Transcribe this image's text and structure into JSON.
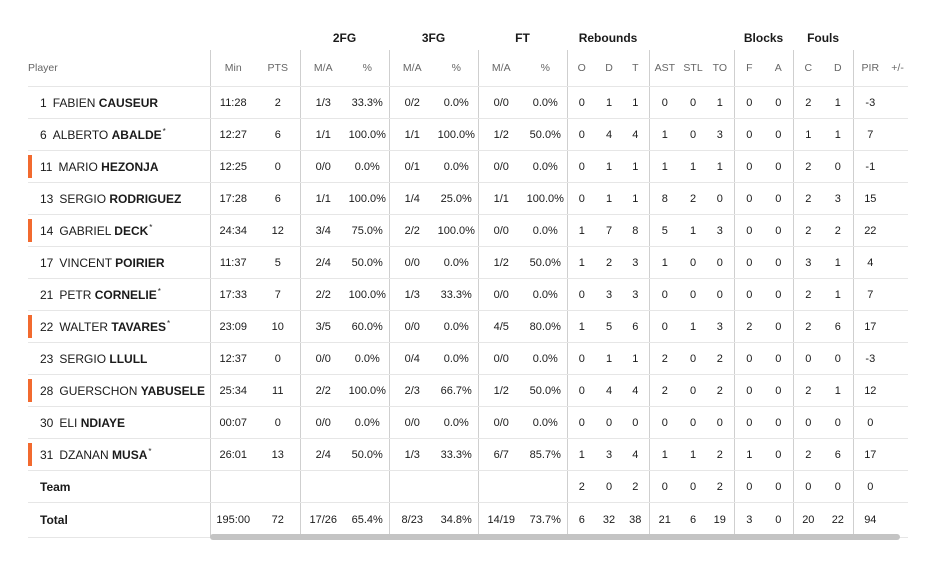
{
  "groups": {
    "fg2": "2FG",
    "fg3": "3FG",
    "ft": "FT",
    "rebounds": "Rebounds",
    "blocks": "Blocks",
    "fouls": "Fouls"
  },
  "headers": {
    "player": "Player",
    "min": "Min",
    "pts": "PTS",
    "fg2_ma": "M/A",
    "fg2_pct": "%",
    "fg3_ma": "M/A",
    "fg3_pct": "%",
    "ft_ma": "M/A",
    "ft_pct": "%",
    "reb_o": "O",
    "reb_d": "D",
    "reb_t": "T",
    "ast": "AST",
    "stl": "STL",
    "to": "TO",
    "blk_f": "F",
    "blk_a": "A",
    "foul_c": "C",
    "foul_d": "D",
    "pir": "PIR",
    "plusminus": "+/-"
  },
  "marker_color": "#f26a2f",
  "players": [
    {
      "number": "1",
      "first": "FABIEN",
      "last": "CAUSEUR",
      "starter": false,
      "marker": false,
      "min": "11:28",
      "pts": "2",
      "fg2_ma": "1/3",
      "fg2_pct": "33.3%",
      "fg3_ma": "0/2",
      "fg3_pct": "0.0%",
      "ft_ma": "0/0",
      "ft_pct": "0.0%",
      "reb_o": "0",
      "reb_d": "1",
      "reb_t": "1",
      "ast": "0",
      "stl": "0",
      "to": "1",
      "blk_f": "0",
      "blk_a": "0",
      "foul_c": "2",
      "foul_d": "1",
      "pir": "-3",
      "plusminus": ""
    },
    {
      "number": "6",
      "first": "ALBERTO",
      "last": "ABALDE",
      "starter": true,
      "marker": false,
      "min": "12:27",
      "pts": "6",
      "fg2_ma": "1/1",
      "fg2_pct": "100.0%",
      "fg3_ma": "1/1",
      "fg3_pct": "100.0%",
      "ft_ma": "1/2",
      "ft_pct": "50.0%",
      "reb_o": "0",
      "reb_d": "4",
      "reb_t": "4",
      "ast": "1",
      "stl": "0",
      "to": "3",
      "blk_f": "0",
      "blk_a": "0",
      "foul_c": "1",
      "foul_d": "1",
      "pir": "7",
      "plusminus": ""
    },
    {
      "number": "11",
      "first": "MARIO",
      "last": "HEZONJA",
      "starter": false,
      "marker": true,
      "min": "12:25",
      "pts": "0",
      "fg2_ma": "0/0",
      "fg2_pct": "0.0%",
      "fg3_ma": "0/1",
      "fg3_pct": "0.0%",
      "ft_ma": "0/0",
      "ft_pct": "0.0%",
      "reb_o": "0",
      "reb_d": "1",
      "reb_t": "1",
      "ast": "1",
      "stl": "1",
      "to": "1",
      "blk_f": "0",
      "blk_a": "0",
      "foul_c": "2",
      "foul_d": "0",
      "pir": "-1",
      "plusminus": ""
    },
    {
      "number": "13",
      "first": "SERGIO",
      "last": "RODRIGUEZ",
      "starter": false,
      "marker": false,
      "min": "17:28",
      "pts": "6",
      "fg2_ma": "1/1",
      "fg2_pct": "100.0%",
      "fg3_ma": "1/4",
      "fg3_pct": "25.0%",
      "ft_ma": "1/1",
      "ft_pct": "100.0%",
      "reb_o": "0",
      "reb_d": "1",
      "reb_t": "1",
      "ast": "8",
      "stl": "2",
      "to": "0",
      "blk_f": "0",
      "blk_a": "0",
      "foul_c": "2",
      "foul_d": "3",
      "pir": "15",
      "plusminus": ""
    },
    {
      "number": "14",
      "first": "GABRIEL",
      "last": "DECK",
      "starter": true,
      "marker": true,
      "min": "24:34",
      "pts": "12",
      "fg2_ma": "3/4",
      "fg2_pct": "75.0%",
      "fg3_ma": "2/2",
      "fg3_pct": "100.0%",
      "ft_ma": "0/0",
      "ft_pct": "0.0%",
      "reb_o": "1",
      "reb_d": "7",
      "reb_t": "8",
      "ast": "5",
      "stl": "1",
      "to": "3",
      "blk_f": "0",
      "blk_a": "0",
      "foul_c": "2",
      "foul_d": "2",
      "pir": "22",
      "plusminus": ""
    },
    {
      "number": "17",
      "first": "VINCENT",
      "last": "POIRIER",
      "starter": false,
      "marker": false,
      "min": "11:37",
      "pts": "5",
      "fg2_ma": "2/4",
      "fg2_pct": "50.0%",
      "fg3_ma": "0/0",
      "fg3_pct": "0.0%",
      "ft_ma": "1/2",
      "ft_pct": "50.0%",
      "reb_o": "1",
      "reb_d": "2",
      "reb_t": "3",
      "ast": "1",
      "stl": "0",
      "to": "0",
      "blk_f": "0",
      "blk_a": "0",
      "foul_c": "3",
      "foul_d": "1",
      "pir": "4",
      "plusminus": ""
    },
    {
      "number": "21",
      "first": "PETR",
      "last": "CORNELIE",
      "starter": true,
      "marker": false,
      "min": "17:33",
      "pts": "7",
      "fg2_ma": "2/2",
      "fg2_pct": "100.0%",
      "fg3_ma": "1/3",
      "fg3_pct": "33.3%",
      "ft_ma": "0/0",
      "ft_pct": "0.0%",
      "reb_o": "0",
      "reb_d": "3",
      "reb_t": "3",
      "ast": "0",
      "stl": "0",
      "to": "0",
      "blk_f": "0",
      "blk_a": "0",
      "foul_c": "2",
      "foul_d": "1",
      "pir": "7",
      "plusminus": ""
    },
    {
      "number": "22",
      "first": "WALTER",
      "last": "TAVARES",
      "starter": true,
      "marker": true,
      "min": "23:09",
      "pts": "10",
      "fg2_ma": "3/5",
      "fg2_pct": "60.0%",
      "fg3_ma": "0/0",
      "fg3_pct": "0.0%",
      "ft_ma": "4/5",
      "ft_pct": "80.0%",
      "reb_o": "1",
      "reb_d": "5",
      "reb_t": "6",
      "ast": "0",
      "stl": "1",
      "to": "3",
      "blk_f": "2",
      "blk_a": "0",
      "foul_c": "2",
      "foul_d": "6",
      "pir": "17",
      "plusminus": ""
    },
    {
      "number": "23",
      "first": "SERGIO",
      "last": "LLULL",
      "starter": false,
      "marker": false,
      "min": "12:37",
      "pts": "0",
      "fg2_ma": "0/0",
      "fg2_pct": "0.0%",
      "fg3_ma": "0/4",
      "fg3_pct": "0.0%",
      "ft_ma": "0/0",
      "ft_pct": "0.0%",
      "reb_o": "0",
      "reb_d": "1",
      "reb_t": "1",
      "ast": "2",
      "stl": "0",
      "to": "2",
      "blk_f": "0",
      "blk_a": "0",
      "foul_c": "0",
      "foul_d": "0",
      "pir": "-3",
      "plusminus": ""
    },
    {
      "number": "28",
      "first": "GUERSCHON",
      "last": "YABUSELE",
      "starter": false,
      "marker": true,
      "min": "25:34",
      "pts": "11",
      "fg2_ma": "2/2",
      "fg2_pct": "100.0%",
      "fg3_ma": "2/3",
      "fg3_pct": "66.7%",
      "ft_ma": "1/2",
      "ft_pct": "50.0%",
      "reb_o": "0",
      "reb_d": "4",
      "reb_t": "4",
      "ast": "2",
      "stl": "0",
      "to": "2",
      "blk_f": "0",
      "blk_a": "0",
      "foul_c": "2",
      "foul_d": "1",
      "pir": "12",
      "plusminus": ""
    },
    {
      "number": "30",
      "first": "ELI",
      "last": "NDIAYE",
      "starter": false,
      "marker": false,
      "min": "00:07",
      "pts": "0",
      "fg2_ma": "0/0",
      "fg2_pct": "0.0%",
      "fg3_ma": "0/0",
      "fg3_pct": "0.0%",
      "ft_ma": "0/0",
      "ft_pct": "0.0%",
      "reb_o": "0",
      "reb_d": "0",
      "reb_t": "0",
      "ast": "0",
      "stl": "0",
      "to": "0",
      "blk_f": "0",
      "blk_a": "0",
      "foul_c": "0",
      "foul_d": "0",
      "pir": "0",
      "plusminus": ""
    },
    {
      "number": "31",
      "first": "DZANAN",
      "last": "MUSA",
      "starter": true,
      "marker": true,
      "min": "26:01",
      "pts": "13",
      "fg2_ma": "2/4",
      "fg2_pct": "50.0%",
      "fg3_ma": "1/3",
      "fg3_pct": "33.3%",
      "ft_ma": "6/7",
      "ft_pct": "85.7%",
      "reb_o": "1",
      "reb_d": "3",
      "reb_t": "4",
      "ast": "1",
      "stl": "1",
      "to": "2",
      "blk_f": "1",
      "blk_a": "0",
      "foul_c": "2",
      "foul_d": "6",
      "pir": "17",
      "plusminus": ""
    }
  ],
  "team": {
    "label": "Team",
    "min": "",
    "pts": "",
    "fg2_ma": "",
    "fg2_pct": "",
    "fg3_ma": "",
    "fg3_pct": "",
    "ft_ma": "",
    "ft_pct": "",
    "reb_o": "2",
    "reb_d": "0",
    "reb_t": "2",
    "ast": "0",
    "stl": "0",
    "to": "2",
    "blk_f": "0",
    "blk_a": "0",
    "foul_c": "0",
    "foul_d": "0",
    "pir": "0",
    "plusminus": ""
  },
  "total": {
    "label": "Total",
    "min": "195:00",
    "pts": "72",
    "fg2_ma": "17/26",
    "fg2_pct": "65.4%",
    "fg3_ma": "8/23",
    "fg3_pct": "34.8%",
    "ft_ma": "14/19",
    "ft_pct": "73.7%",
    "reb_o": "6",
    "reb_d": "32",
    "reb_t": "38",
    "ast": "21",
    "stl": "6",
    "to": "19",
    "blk_f": "3",
    "blk_a": "0",
    "foul_c": "20",
    "foul_d": "22",
    "pir": "94",
    "plusminus": ""
  }
}
